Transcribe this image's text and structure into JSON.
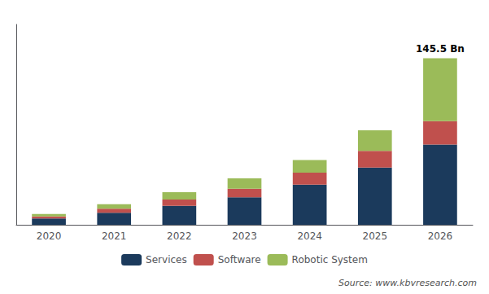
{
  "chart_data": {
    "type": "bar",
    "stacked": true,
    "categories": [
      "2020",
      "2021",
      "2022",
      "2023",
      "2024",
      "2025",
      "2026"
    ],
    "series": [
      {
        "name": "Services",
        "color": "#1b3a5c",
        "values": [
          5.5,
          10.5,
          16.5,
          24.0,
          35.0,
          50.0,
          70.0
        ]
      },
      {
        "name": "Software",
        "color": "#c0504d",
        "values": [
          1.8,
          3.5,
          5.5,
          7.5,
          10.5,
          14.5,
          20.5
        ]
      },
      {
        "name": "Robotic System",
        "color": "#9bbb59",
        "values": [
          2.2,
          4.0,
          6.5,
          9.0,
          11.0,
          18.0,
          55.0
        ]
      }
    ],
    "ylim": [
      0,
      175
    ],
    "tick_labels": "x",
    "grid": false,
    "legend": "bottom",
    "annotations": [
      {
        "text": "145.5 Bn",
        "x": "2026"
      },
      {
        "text": "Source: www.kbvresearch.com"
      }
    ]
  }
}
